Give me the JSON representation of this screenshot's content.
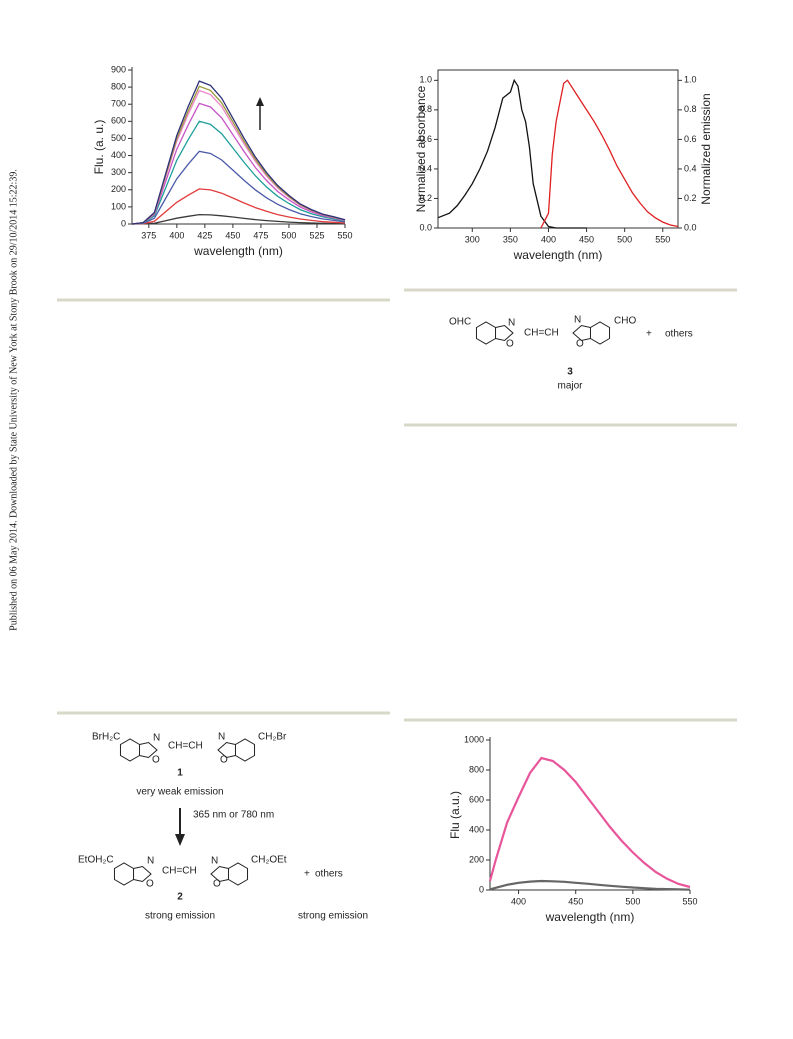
{
  "sidebar": "Published on 06 May 2014. Downloaded by State University of New York at Stony Brook on 29/10/2014 15:22:39.",
  "chart_data": [
    {
      "type": "line",
      "y_label": "Flu. (a. u.)",
      "x_label": "wavelength (nm)",
      "x": [
        360,
        370,
        380,
        390,
        400,
        410,
        420,
        430,
        440,
        450,
        460,
        470,
        480,
        490,
        500,
        510,
        520,
        530,
        540,
        550
      ],
      "series": [
        {
          "color": "#3a3a3a",
          "values": [
            0,
            1,
            4,
            19,
            34,
            45,
            55,
            53,
            48,
            41,
            33,
            26,
            20,
            15,
            11,
            8,
            6,
            4,
            3,
            2
          ]
        },
        {
          "color": "#e23a3a",
          "values": [
            0,
            2,
            16,
            72,
            127,
            168,
            205,
            199,
            180,
            152,
            123,
            96,
            74,
            55,
            41,
            29,
            21,
            14,
            10,
            6
          ]
        },
        {
          "color": "#4a5aa8",
          "values": [
            0,
            4,
            34,
            149,
            264,
            349,
            425,
            412,
            374,
            315,
            255,
            200,
            153,
            115,
            85,
            60,
            43,
            30,
            21,
            13
          ]
        },
        {
          "color": "#1f9e9a",
          "values": [
            0,
            6,
            48,
            210,
            372,
            492,
            600,
            582,
            528,
            444,
            360,
            282,
            216,
            162,
            120,
            84,
            60,
            42,
            30,
            18
          ]
        },
        {
          "color": "#c653c6",
          "values": [
            0,
            7,
            56,
            247,
            437,
            578,
            705,
            684,
            620,
            522,
            423,
            331,
            254,
            190,
            141,
            99,
            71,
            49,
            35,
            21
          ]
        },
        {
          "color": "#ee82c8",
          "values": [
            0,
            8,
            62,
            273,
            484,
            640,
            780,
            757,
            686,
            577,
            468,
            367,
            281,
            211,
            156,
            109,
            78,
            55,
            39,
            23
          ]
        },
        {
          "color": "#9a9a3c",
          "values": [
            0,
            8,
            64,
            282,
            499,
            660,
            805,
            781,
            708,
            596,
            483,
            378,
            290,
            217,
            161,
            113,
            81,
            56,
            40,
            24
          ]
        },
        {
          "color": "#2e2e7a",
          "values": [
            0,
            8,
            67,
            292,
            518,
            685,
            835,
            810,
            735,
            618,
            501,
            392,
            301,
            225,
            167,
            117,
            84,
            58,
            42,
            25
          ]
        }
      ],
      "xlim": [
        360,
        550
      ],
      "xticks": [
        375,
        400,
        425,
        450,
        475,
        500,
        525,
        550
      ],
      "ylim": [
        0,
        900
      ],
      "yticks": [
        0,
        100,
        200,
        300,
        400,
        500,
        600,
        700,
        800,
        900
      ],
      "frame": false
    },
    {
      "type": "line",
      "y_label": "Normalized absorbance",
      "y2_label": "Normalized emission",
      "x_label": "wavelength (nm)",
      "series": [
        {
          "color": "#111111",
          "x": [
            255,
            270,
            280,
            290,
            300,
            310,
            320,
            330,
            340,
            345,
            350,
            355,
            360,
            365,
            370,
            375,
            380,
            390,
            400,
            410,
            450
          ],
          "values": [
            0.07,
            0.1,
            0.15,
            0.22,
            0.3,
            0.4,
            0.52,
            0.68,
            0.88,
            0.9,
            0.92,
            1.0,
            0.96,
            0.8,
            0.72,
            0.55,
            0.3,
            0.08,
            0.01,
            0,
            0
          ]
        },
        {
          "color": "#e02020",
          "axis": "y2",
          "x": [
            390,
            400,
            405,
            410,
            415,
            420,
            425,
            430,
            440,
            450,
            460,
            470,
            480,
            490,
            500,
            510,
            520,
            530,
            540,
            550,
            560,
            570
          ],
          "values": [
            0,
            0.1,
            0.5,
            0.72,
            0.85,
            0.98,
            1.0,
            0.96,
            0.88,
            0.8,
            0.72,
            0.63,
            0.53,
            0.42,
            0.33,
            0.24,
            0.17,
            0.11,
            0.07,
            0.04,
            0.02,
            0.01
          ]
        }
      ],
      "xlim": [
        255,
        570
      ],
      "xticks": [
        300,
        350,
        400,
        450,
        500,
        550
      ],
      "ylim": [
        0,
        1.07
      ],
      "yticks": [
        {
          "value": 0,
          "label": "0.0"
        },
        0.2,
        0.4,
        0.6,
        0.8,
        {
          "value": 1,
          "label": "1.0"
        }
      ],
      "y2lim": [
        0,
        1.07
      ],
      "y2ticks": [
        {
          "value": 0,
          "label": "0.0"
        },
        0.2,
        0.4,
        0.6,
        0.8,
        {
          "value": 1,
          "label": "1.0"
        }
      ],
      "frame": true
    },
    {
      "type": "line",
      "y_label": "Flu (a.u.)",
      "x_label": "wavelength (nm)",
      "x": [
        375,
        380,
        390,
        400,
        410,
        420,
        430,
        440,
        450,
        460,
        470,
        480,
        490,
        500,
        510,
        520,
        530,
        540,
        550
      ],
      "series": [
        {
          "color": "#e8559a",
          "values": [
            60,
            200,
            450,
            620,
            780,
            880,
            860,
            800,
            720,
            620,
            520,
            420,
            330,
            250,
            180,
            120,
            75,
            40,
            20
          ]
        },
        {
          "color": "#666666",
          "values": [
            5,
            15,
            35,
            48,
            56,
            60,
            58,
            55,
            48,
            42,
            35,
            28,
            22,
            17,
            12,
            8,
            6,
            4,
            2
          ]
        }
      ],
      "xlim": [
        375,
        550
      ],
      "xticks": [
        400,
        450,
        500,
        550
      ],
      "ylim": [
        0,
        1000
      ],
      "yticks": [
        0,
        200,
        400,
        600,
        800,
        1000
      ],
      "frame": false
    }
  ],
  "scheme_3": {
    "left_group": "OHC",
    "n": "N",
    "o": "O",
    "linker": "CH=CH",
    "right_group": "CHO",
    "plus": "+",
    "others": "others",
    "number": "3",
    "caption": "major"
  },
  "scheme_1": {
    "compound_1": {
      "left_group": "BrH₂C",
      "n": "N",
      "o": "O",
      "linker": "CH=CH",
      "right_group": "CH₂Br",
      "number": "1",
      "caption": "very weak emission"
    },
    "conditions": "365 nm or 780 nm",
    "compound_2": {
      "left_group": "EtOH₂C",
      "n": "N",
      "o": "O",
      "linker": "CH=CH",
      "right_group": "CH₂OEt",
      "number": "2",
      "caption": "strong emission"
    },
    "plus": "+",
    "others": "others",
    "others_caption": "strong emission"
  }
}
